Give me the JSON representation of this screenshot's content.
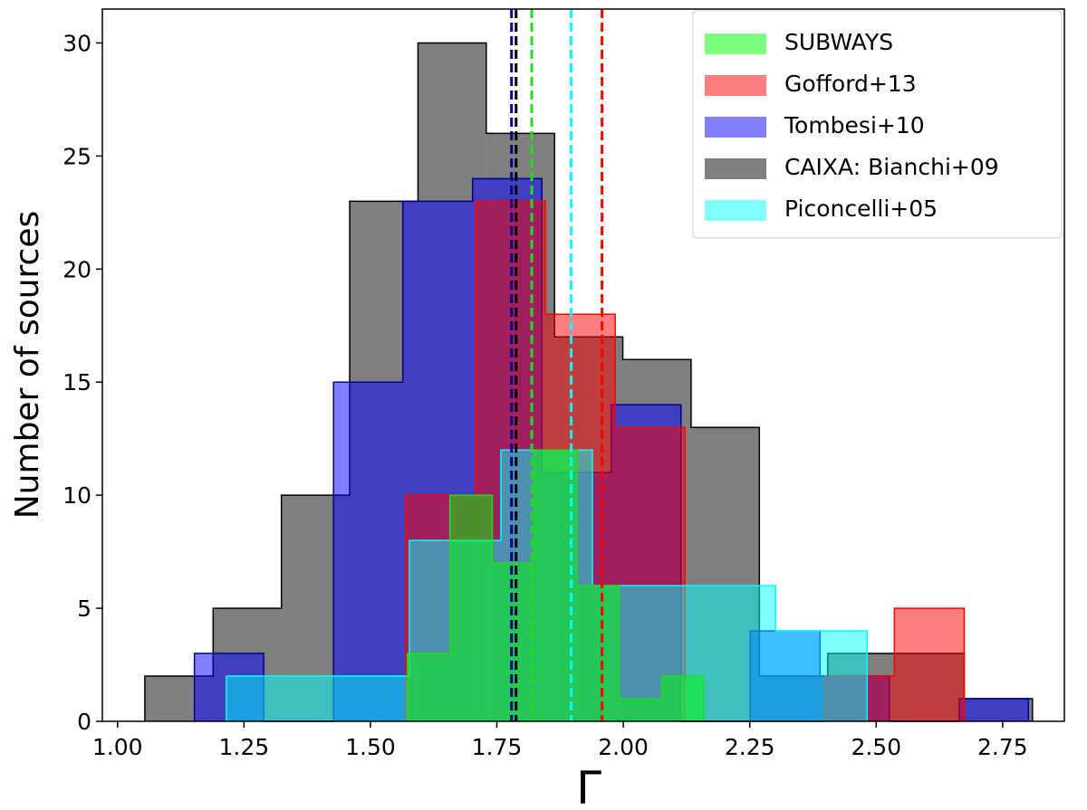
{
  "chart_data": {
    "type": "histogram",
    "xlabel": "Γ",
    "ylabel": "Number of sources",
    "xlim": [
      0.97,
      2.872
    ],
    "ylim": [
      0,
      31.5
    ],
    "xticks": [
      {
        "value": 1.0,
        "label": "1.00"
      },
      {
        "value": 1.25,
        "label": "1.25"
      },
      {
        "value": 1.5,
        "label": "1.50"
      },
      {
        "value": 1.75,
        "label": "1.75"
      },
      {
        "value": 2.0,
        "label": "2.00"
      },
      {
        "value": 2.25,
        "label": "2.25"
      },
      {
        "value": 2.5,
        "label": "2.50"
      },
      {
        "value": 2.75,
        "label": "2.75"
      }
    ],
    "yticks": [
      0,
      5,
      10,
      15,
      20,
      25,
      30
    ],
    "legend_position": "upper right",
    "series": [
      {
        "name": "CAIXA: Bianchi+09",
        "color": "#000000",
        "line_color": "#000000",
        "bins": [
          1.054,
          1.189,
          1.324,
          1.459,
          1.594,
          1.729,
          1.864,
          1.999,
          2.134,
          2.269,
          2.404,
          2.539,
          2.674,
          2.809
        ],
        "counts": [
          2,
          5,
          10,
          23,
          30,
          26,
          17,
          16,
          13,
          2,
          3,
          3,
          1
        ],
        "mean": 1.788
      },
      {
        "name": "Tombesi+10",
        "color": "#0000ff",
        "line_color": "#00008b",
        "bins": [
          1.152,
          1.289,
          1.427,
          1.564,
          1.702,
          1.839,
          1.976,
          2.114,
          2.251,
          2.389,
          2.526,
          2.664,
          2.801
        ],
        "counts": [
          3,
          0,
          15,
          23,
          24,
          11,
          14,
          0,
          4,
          2,
          0,
          1
        ],
        "mean": 1.779
      },
      {
        "name": "Gofford+13",
        "color": "#ff0000",
        "line_color": "#ff0000",
        "bins": [
          1.57,
          1.708,
          1.846,
          1.984,
          2.122,
          2.26,
          2.398,
          2.536,
          2.674
        ],
        "counts": [
          10,
          23,
          18,
          13,
          0,
          0,
          2,
          5
        ],
        "mean": 1.958
      },
      {
        "name": "Piconcelli+05",
        "color": "#00ffff",
        "line_color": "#00ffff",
        "bins": [
          1.215,
          1.396,
          1.577,
          1.758,
          1.939,
          2.12,
          2.301,
          2.482
        ],
        "counts": [
          2,
          2,
          8,
          12,
          6,
          6,
          4
        ],
        "mean": 1.897
      },
      {
        "name": "SUBWAYS",
        "color": "#00ff00",
        "line_color": "#22dd22",
        "bins": [
          1.573,
          1.657,
          1.741,
          1.824,
          1.908,
          1.992,
          2.076,
          2.159
        ],
        "counts": [
          3,
          10,
          7,
          12,
          6,
          1,
          2
        ],
        "mean": 1.819
      }
    ],
    "legend_order": [
      4,
      2,
      1,
      0,
      3
    ]
  }
}
